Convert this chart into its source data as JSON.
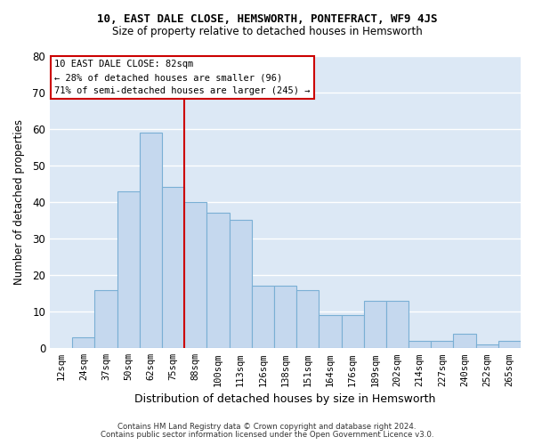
{
  "title1": "10, EAST DALE CLOSE, HEMSWORTH, PONTEFRACT, WF9 4JS",
  "title2": "Size of property relative to detached houses in Hemsworth",
  "xlabel": "Distribution of detached houses by size in Hemsworth",
  "ylabel": "Number of detached properties",
  "categories": [
    "12sqm",
    "24sqm",
    "37sqm",
    "50sqm",
    "62sqm",
    "75sqm",
    "88sqm",
    "100sqm",
    "113sqm",
    "126sqm",
    "138sqm",
    "151sqm",
    "164sqm",
    "176sqm",
    "189sqm",
    "202sqm",
    "214sqm",
    "227sqm",
    "240sqm",
    "252sqm",
    "265sqm"
  ],
  "values": [
    0,
    3,
    16,
    43,
    59,
    44,
    40,
    37,
    35,
    17,
    17,
    16,
    9,
    9,
    13,
    13,
    2,
    2,
    4,
    1,
    2
  ],
  "bar_color": "#c5d8ee",
  "bar_edge_color": "#7aafd4",
  "annotation_line1": "10 EAST DALE CLOSE: 82sqm",
  "annotation_line2": "← 28% of detached houses are smaller (96)",
  "annotation_line3": "71% of semi-detached houses are larger (245) →",
  "vline_color": "#cc0000",
  "box_edge_color": "#cc0000",
  "vline_x_idx": 6,
  "ylim": [
    0,
    80
  ],
  "yticks": [
    0,
    10,
    20,
    30,
    40,
    50,
    60,
    70,
    80
  ],
  "plot_bg_color": "#dce8f5",
  "grid_color": "#ffffff",
  "fig_bg_color": "#ffffff",
  "footnote1": "Contains HM Land Registry data © Crown copyright and database right 2024.",
  "footnote2": "Contains public sector information licensed under the Open Government Licence v3.0."
}
